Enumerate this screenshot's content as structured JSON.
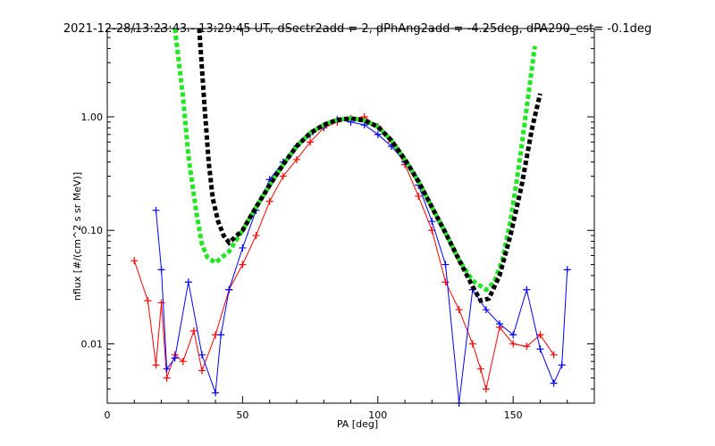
{
  "chart_data": {
    "type": "scatter",
    "title": "2021-12-28/13:23:43 - 13:29:45 UT, dSectr2add = 2, dPhAng2add = -4.25deg, dPA290_est=  -0.1deg",
    "xlabel": "PA [deg]",
    "ylabel": "nflux [#/(cm^2 s sr MeV)]",
    "xlim": [
      0,
      180
    ],
    "ylim": [
      0.003,
      6.0
    ],
    "yscale": "log",
    "x_ticks": [
      0,
      50,
      100,
      150
    ],
    "x_tick_labels": [
      "0",
      "50",
      "100",
      "150"
    ],
    "y_ticks": [
      0.01,
      0.1,
      1.0
    ],
    "y_tick_labels": [
      "0.01",
      "0.10",
      "1.00"
    ],
    "grid": false,
    "colors": {
      "red": "#ff0000",
      "blue": "#0000ff",
      "green": "#22e622",
      "black": "#000000"
    },
    "series": [
      {
        "color": "red",
        "style": "line+plus",
        "points": [
          [
            10,
            0.054
          ],
          [
            15,
            0.024
          ],
          [
            18,
            0.0065
          ],
          [
            20,
            0.023
          ],
          [
            22,
            0.005
          ],
          [
            25,
            0.008
          ],
          [
            28,
            0.007
          ],
          [
            32,
            0.013
          ],
          [
            35,
            0.0058
          ],
          [
            40,
            0.012
          ],
          [
            45,
            0.03
          ],
          [
            50,
            0.05
          ],
          [
            55,
            0.09
          ],
          [
            60,
            0.18
          ],
          [
            65,
            0.3
          ],
          [
            70,
            0.42
          ],
          [
            75,
            0.6
          ],
          [
            80,
            0.8
          ],
          [
            85,
            0.9
          ],
          [
            90,
            0.97
          ],
          [
            95,
            1.0
          ],
          [
            100,
            0.82
          ],
          [
            105,
            0.6
          ],
          [
            110,
            0.38
          ],
          [
            115,
            0.2
          ],
          [
            120,
            0.1
          ],
          [
            125,
            0.035
          ],
          [
            130,
            0.02
          ],
          [
            135,
            0.01
          ],
          [
            138,
            0.006
          ],
          [
            140,
            0.004
          ],
          [
            145,
            0.014
          ],
          [
            150,
            0.01
          ],
          [
            155,
            0.0095
          ],
          [
            160,
            0.012
          ],
          [
            165,
            0.008
          ]
        ]
      },
      {
        "color": "blue",
        "style": "line+plus",
        "points": [
          [
            18,
            0.15
          ],
          [
            20,
            0.045
          ],
          [
            22,
            0.006
          ],
          [
            25,
            0.0075
          ],
          [
            30,
            0.035
          ],
          [
            35,
            0.008
          ],
          [
            40,
            0.0037
          ],
          [
            42,
            0.012
          ],
          [
            45,
            0.03
          ],
          [
            50,
            0.07
          ],
          [
            55,
            0.15
          ],
          [
            60,
            0.28
          ],
          [
            65,
            0.4
          ],
          [
            70,
            0.55
          ],
          [
            75,
            0.7
          ],
          [
            80,
            0.82
          ],
          [
            85,
            0.95
          ],
          [
            90,
            0.9
          ],
          [
            95,
            0.85
          ],
          [
            100,
            0.7
          ],
          [
            105,
            0.55
          ],
          [
            110,
            0.4
          ],
          [
            115,
            0.25
          ],
          [
            120,
            0.12
          ],
          [
            125,
            0.05
          ],
          [
            130,
            0.0028
          ],
          [
            135,
            0.03
          ],
          [
            140,
            0.02
          ],
          [
            145,
            0.015
          ],
          [
            150,
            0.012
          ],
          [
            155,
            0.03
          ],
          [
            160,
            0.009
          ],
          [
            165,
            0.0045
          ],
          [
            168,
            0.0065
          ],
          [
            170,
            0.045
          ]
        ]
      },
      {
        "color": "green",
        "style": "thick-dashed",
        "points": [
          [
            25,
            6.0
          ],
          [
            28,
            1.5
          ],
          [
            30,
            0.45
          ],
          [
            33,
            0.14
          ],
          [
            35,
            0.075
          ],
          [
            37,
            0.058
          ],
          [
            40,
            0.052
          ],
          [
            45,
            0.065
          ],
          [
            50,
            0.1
          ],
          [
            55,
            0.16
          ],
          [
            60,
            0.25
          ],
          [
            65,
            0.38
          ],
          [
            70,
            0.55
          ],
          [
            75,
            0.72
          ],
          [
            80,
            0.85
          ],
          [
            85,
            0.94
          ],
          [
            90,
            0.97
          ],
          [
            95,
            0.93
          ],
          [
            100,
            0.82
          ],
          [
            105,
            0.62
          ],
          [
            110,
            0.42
          ],
          [
            115,
            0.27
          ],
          [
            120,
            0.16
          ],
          [
            125,
            0.095
          ],
          [
            130,
            0.055
          ],
          [
            135,
            0.036
          ],
          [
            140,
            0.03
          ],
          [
            143,
            0.035
          ],
          [
            146,
            0.055
          ],
          [
            149,
            0.12
          ],
          [
            152,
            0.35
          ],
          [
            155,
            1.2
          ],
          [
            158,
            4.2
          ]
        ]
      },
      {
        "color": "black",
        "style": "thick-dashed",
        "points": [
          [
            34,
            6.0
          ],
          [
            36,
            1.2
          ],
          [
            37.5,
            0.4
          ],
          [
            39,
            0.19
          ],
          [
            41,
            0.12
          ],
          [
            43,
            0.09
          ],
          [
            45,
            0.078
          ],
          [
            50,
            0.1
          ],
          [
            55,
            0.16
          ],
          [
            60,
            0.25
          ],
          [
            65,
            0.38
          ],
          [
            70,
            0.55
          ],
          [
            75,
            0.72
          ],
          [
            80,
            0.85
          ],
          [
            85,
            0.94
          ],
          [
            90,
            0.97
          ],
          [
            95,
            0.93
          ],
          [
            100,
            0.82
          ],
          [
            105,
            0.62
          ],
          [
            110,
            0.42
          ],
          [
            115,
            0.27
          ],
          [
            120,
            0.16
          ],
          [
            125,
            0.095
          ],
          [
            130,
            0.055
          ],
          [
            135,
            0.032
          ],
          [
            138,
            0.024
          ],
          [
            141,
            0.025
          ],
          [
            145,
            0.04
          ],
          [
            149,
            0.09
          ],
          [
            153,
            0.24
          ],
          [
            157,
            0.8
          ],
          [
            160,
            1.6
          ]
        ]
      }
    ]
  }
}
